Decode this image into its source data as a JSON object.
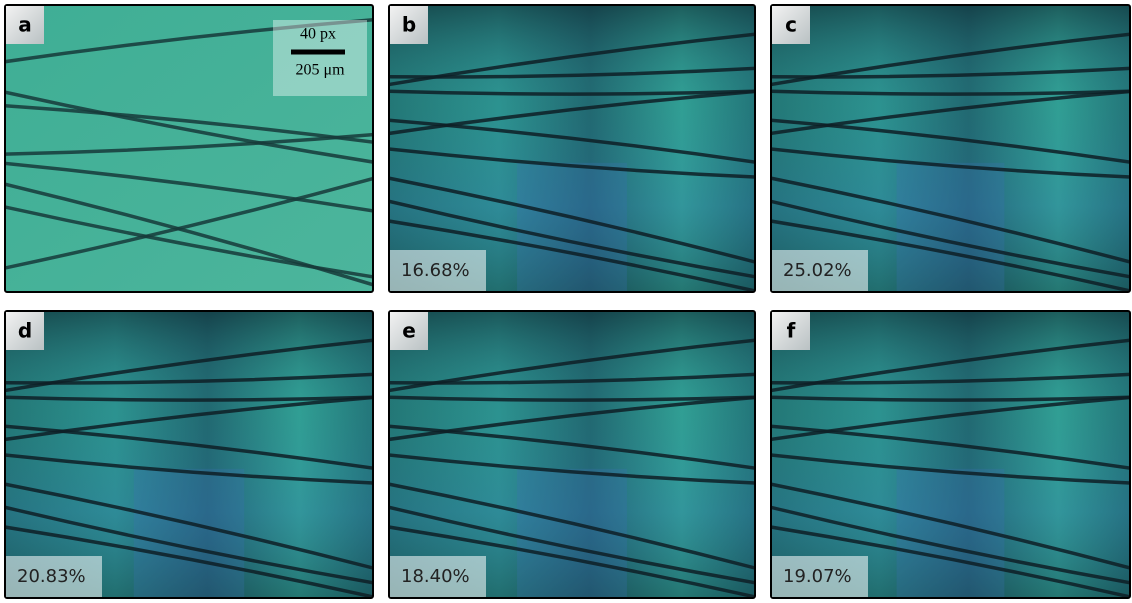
{
  "panels": [
    {
      "label": "a",
      "scale_top": "40 px",
      "scale_bottom": "205 μm"
    },
    {
      "label": "b",
      "percent": "16.68%"
    },
    {
      "label": "c",
      "percent": "25.02%"
    },
    {
      "label": "d",
      "percent": "20.83%"
    },
    {
      "label": "e",
      "percent": "18.40%"
    },
    {
      "label": "f",
      "percent": "19.07%"
    }
  ]
}
